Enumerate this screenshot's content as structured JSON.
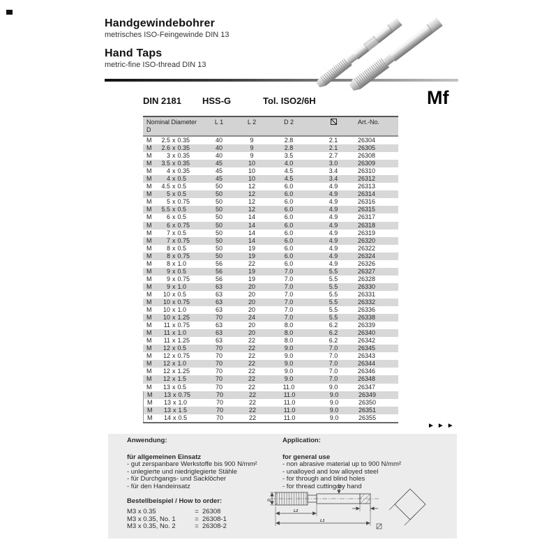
{
  "header": {
    "title_de": "Handgewindebohrer",
    "subtitle_de": "metrisches ISO-Feingewinde DIN 13",
    "title_en": "Hand Taps",
    "subtitle_en": "metric-fine ISO-thread DIN 13"
  },
  "spec": {
    "din": "DIN 2181",
    "material": "HSS-G",
    "tolerance": "Tol. ISO2/6H",
    "thread_code": "Mf"
  },
  "table": {
    "col_nominal_line1": "Nominal Diameter",
    "col_nominal_line2": "D",
    "col_l1": "L 1",
    "col_l2": "L 2",
    "col_d2": "D 2",
    "col_square_icon": "square-diagonal-icon",
    "col_art": "Art.-No.",
    "prefix": "M",
    "separator": "x",
    "rows": [
      {
        "d": "2.5",
        "p": "0.35",
        "l1": "40",
        "l2": "9",
        "d2": "2.8",
        "sq": "2.1",
        "art": "26304"
      },
      {
        "d": "2.6",
        "p": "0.35",
        "l1": "40",
        "l2": "9",
        "d2": "2.8",
        "sq": "2.1",
        "art": "26305"
      },
      {
        "d": "3",
        "p": "0.35",
        "l1": "40",
        "l2": "9",
        "d2": "3.5",
        "sq": "2.7",
        "art": "26308"
      },
      {
        "d": "3.5",
        "p": "0.35",
        "l1": "45",
        "l2": "10",
        "d2": "4.0",
        "sq": "3.0",
        "art": "26309"
      },
      {
        "d": "4",
        "p": "0.35",
        "l1": "45",
        "l2": "10",
        "d2": "4.5",
        "sq": "3.4",
        "art": "26310"
      },
      {
        "d": "4",
        "p": "0.5",
        "l1": "45",
        "l2": "10",
        "d2": "4.5",
        "sq": "3.4",
        "art": "26312"
      },
      {
        "d": "4.5",
        "p": "0.5",
        "l1": "50",
        "l2": "12",
        "d2": "6.0",
        "sq": "4.9",
        "art": "26313"
      },
      {
        "d": "5",
        "p": "0.5",
        "l1": "50",
        "l2": "12",
        "d2": "6.0",
        "sq": "4.9",
        "art": "26314"
      },
      {
        "d": "5",
        "p": "0.75",
        "l1": "50",
        "l2": "12",
        "d2": "6.0",
        "sq": "4.9",
        "art": "26316"
      },
      {
        "d": "5.5",
        "p": "0.5",
        "l1": "50",
        "l2": "12",
        "d2": "6.0",
        "sq": "4.9",
        "art": "26315"
      },
      {
        "d": "6",
        "p": "0.5",
        "l1": "50",
        "l2": "14",
        "d2": "6.0",
        "sq": "4.9",
        "art": "26317"
      },
      {
        "d": "6",
        "p": "0.75",
        "l1": "50",
        "l2": "14",
        "d2": "6.0",
        "sq": "4.9",
        "art": "26318"
      },
      {
        "d": "7",
        "p": "0.5",
        "l1": "50",
        "l2": "14",
        "d2": "6.0",
        "sq": "4.9",
        "art": "26319"
      },
      {
        "d": "7",
        "p": "0.75",
        "l1": "50",
        "l2": "14",
        "d2": "6.0",
        "sq": "4.9",
        "art": "26320"
      },
      {
        "d": "8",
        "p": "0.5",
        "l1": "50",
        "l2": "19",
        "d2": "6.0",
        "sq": "4.9",
        "art": "26322"
      },
      {
        "d": "8",
        "p": "0.75",
        "l1": "50",
        "l2": "19",
        "d2": "6.0",
        "sq": "4.9",
        "art": "26324"
      },
      {
        "d": "8",
        "p": "1.0",
        "l1": "56",
        "l2": "22",
        "d2": "6.0",
        "sq": "4.9",
        "art": "26326"
      },
      {
        "d": "9",
        "p": "0.5",
        "l1": "56",
        "l2": "19",
        "d2": "7.0",
        "sq": "5.5",
        "art": "26327"
      },
      {
        "d": "9",
        "p": "0.75",
        "l1": "56",
        "l2": "19",
        "d2": "7.0",
        "sq": "5.5",
        "art": "26328"
      },
      {
        "d": "9",
        "p": "1.0",
        "l1": "63",
        "l2": "20",
        "d2": "7.0",
        "sq": "5.5",
        "art": "26330"
      },
      {
        "d": "10",
        "p": "0.5",
        "l1": "63",
        "l2": "20",
        "d2": "7.0",
        "sq": "5.5",
        "art": "26331"
      },
      {
        "d": "10",
        "p": "0.75",
        "l1": "63",
        "l2": "20",
        "d2": "7.0",
        "sq": "5.5",
        "art": "26332"
      },
      {
        "d": "10",
        "p": "1.0",
        "l1": "63",
        "l2": "20",
        "d2": "7.0",
        "sq": "5.5",
        "art": "26336"
      },
      {
        "d": "10",
        "p": "1.25",
        "l1": "70",
        "l2": "24",
        "d2": "7.0",
        "sq": "5.5",
        "art": "26338"
      },
      {
        "d": "11",
        "p": "0.75",
        "l1": "63",
        "l2": "20",
        "d2": "8.0",
        "sq": "6.2",
        "art": "26339"
      },
      {
        "d": "11",
        "p": "1.0",
        "l1": "63",
        "l2": "20",
        "d2": "8.0",
        "sq": "6.2",
        "art": "26340"
      },
      {
        "d": "11",
        "p": "1.25",
        "l1": "63",
        "l2": "22",
        "d2": "8.0",
        "sq": "6.2",
        "art": "26342"
      },
      {
        "d": "12",
        "p": "0.5",
        "l1": "70",
        "l2": "22",
        "d2": "9.0",
        "sq": "7.0",
        "art": "26345"
      },
      {
        "d": "12",
        "p": "0.75",
        "l1": "70",
        "l2": "22",
        "d2": "9.0",
        "sq": "7.0",
        "art": "26343"
      },
      {
        "d": "12",
        "p": "1.0",
        "l1": "70",
        "l2": "22",
        "d2": "9.0",
        "sq": "7.0",
        "art": "26344"
      },
      {
        "d": "12",
        "p": "1.25",
        "l1": "70",
        "l2": "22",
        "d2": "9.0",
        "sq": "7.0",
        "art": "26346"
      },
      {
        "d": "12",
        "p": "1.5",
        "l1": "70",
        "l2": "22",
        "d2": "9.0",
        "sq": "7.0",
        "art": "26348"
      },
      {
        "d": "13",
        "p": "0.5",
        "l1": "70",
        "l2": "22",
        "d2": "11.0",
        "sq": "9.0",
        "art": "26347"
      },
      {
        "d": "13",
        "p": "0.75",
        "l1": "70",
        "l2": "22",
        "d2": "11.0",
        "sq": "9.0",
        "art": "26349"
      },
      {
        "d": "13",
        "p": "1.0",
        "l1": "70",
        "l2": "22",
        "d2": "11.0",
        "sq": "9.0",
        "art": "26350"
      },
      {
        "d": "13",
        "p": "1.5",
        "l1": "70",
        "l2": "22",
        "d2": "11.0",
        "sq": "9.0",
        "art": "26351"
      },
      {
        "d": "14",
        "p": "0.5",
        "l1": "70",
        "l2": "22",
        "d2": "11.0",
        "sq": "9.0",
        "art": "26355"
      }
    ]
  },
  "more_indicator": "►►►",
  "application": {
    "heading_de": "Anwendung:",
    "heading_en": "Application:",
    "de": {
      "title": "für allgemeinen Einsatz",
      "items": [
        "- gut zerspanbare Werkstoffe bis 900 N/mm²",
        "- unlegierte und niedriglegierte Stähle",
        "- für Durchgangs- und Sacklöcher",
        "- für den Handeinsatz"
      ]
    },
    "en": {
      "title": "for general use",
      "items": [
        "- non abrasive material up to 900 N/mm²",
        "- unalloyed and low alloyed steel",
        "- for through and blind holes",
        "- for thread cutting by hand"
      ]
    },
    "order": {
      "heading": "Bestellbeispiel / How to order:",
      "examples": [
        {
          "item": "M3 x 0.35",
          "eq": "=",
          "no": "26308"
        },
        {
          "item": "M3 x 0.35, No. 1",
          "eq": "=",
          "no": "26308-1"
        },
        {
          "item": "M3 x 0.35, No. 2",
          "eq": "=",
          "no": "26308-2"
        }
      ]
    }
  },
  "diagram": {
    "d_label": "D",
    "l2_label": "L2",
    "l1_label": "L1",
    "d2_label": "D2"
  }
}
